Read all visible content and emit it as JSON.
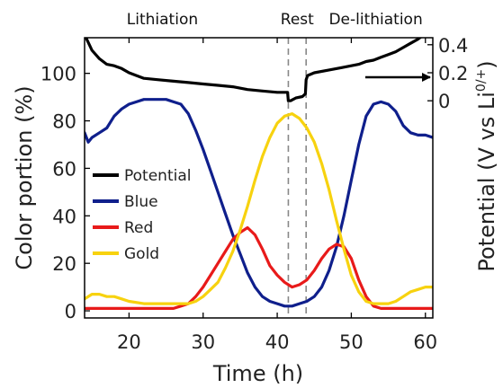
{
  "chart_data": {
    "type": "line",
    "xlabel": "Time (h)",
    "ylabel": "Color portion (%)",
    "y2label": "Potential (V vs Li",
    "y2label_sup": "0/+",
    "y2label_close": ")",
    "xlim": [
      14,
      61
    ],
    "ylim": [
      -3,
      115
    ],
    "y2lim": [
      -1.55,
      0.45
    ],
    "xticks": [
      20,
      30,
      40,
      50,
      60
    ],
    "yticks": [
      0,
      20,
      40,
      60,
      80,
      100
    ],
    "y2ticks": [
      {
        "value": 0.0,
        "label": "0"
      },
      {
        "value": 0.2,
        "label": "0.2"
      },
      {
        "value": 0.4,
        "label": "0.4"
      }
    ],
    "phases": [
      {
        "label": "Lithiation",
        "x": 24.5
      },
      {
        "label": "Rest",
        "x": 42.7
      },
      {
        "label": "De-lithiation",
        "x": 53.3
      }
    ],
    "rest_bounds": [
      41.5,
      43.9
    ],
    "series": [
      {
        "name": "Potential",
        "color": "#000000",
        "axis": "y2",
        "x": [
          14.2,
          15,
          16,
          17,
          18,
          19,
          20,
          21,
          22,
          24,
          26,
          28,
          30,
          32,
          34,
          36,
          38,
          40,
          41.4,
          41.5,
          41.8,
          42.5,
          43.4,
          43.8,
          43.9,
          44.1,
          45,
          47,
          49,
          51,
          52,
          53,
          54,
          55,
          56,
          57,
          58,
          59,
          60,
          60.5,
          61
        ],
        "values": [
          0.45,
          0.36,
          0.3,
          0.26,
          0.25,
          0.23,
          0.2,
          0.18,
          0.16,
          0.15,
          0.14,
          0.13,
          0.12,
          0.11,
          0.1,
          0.08,
          0.07,
          0.06,
          0.06,
          0.0,
          0.0,
          0.02,
          0.03,
          0.05,
          0.15,
          0.18,
          0.2,
          0.22,
          0.24,
          0.26,
          0.28,
          0.29,
          0.31,
          0.33,
          0.35,
          0.38,
          0.41,
          0.44,
          0.48,
          0.53,
          0.62
        ]
      },
      {
        "name": "Blue",
        "color": "#0f1f8c",
        "axis": "y",
        "x": [
          14,
          14.5,
          15,
          16,
          17,
          18,
          19,
          20,
          21,
          22,
          23,
          24,
          25,
          26,
          27,
          28,
          29,
          30,
          31,
          32,
          33,
          34,
          35,
          36,
          37,
          38,
          39,
          40,
          41,
          42,
          43,
          44,
          45,
          46,
          47,
          48,
          49,
          50,
          51,
          52,
          53,
          54,
          55,
          56,
          57,
          58,
          59,
          60,
          61
        ],
        "values": [
          75,
          71,
          73,
          75,
          77,
          82,
          85,
          87,
          88,
          89,
          89,
          89,
          89,
          88,
          87,
          83,
          76,
          68,
          59,
          50,
          41,
          32,
          24,
          16,
          10,
          6,
          4,
          3,
          2,
          2,
          3,
          4,
          6,
          10,
          17,
          27,
          40,
          55,
          70,
          82,
          87,
          88,
          87,
          84,
          78,
          75,
          74,
          74,
          73
        ]
      },
      {
        "name": "Red",
        "color": "#e81a1a",
        "axis": "y",
        "x": [
          14,
          16,
          18,
          20,
          22,
          24,
          26,
          27,
          28,
          29,
          30,
          31,
          32,
          33,
          34,
          35,
          36,
          37,
          38,
          39,
          40,
          41,
          42,
          43,
          44,
          45,
          46,
          47,
          48,
          49,
          50,
          51,
          52,
          53,
          54,
          56,
          58,
          60,
          61
        ],
        "values": [
          1,
          1,
          1,
          1,
          1,
          1,
          1,
          2,
          3,
          6,
          10,
          15,
          20,
          25,
          30,
          33,
          35,
          32,
          26,
          19,
          15,
          12,
          10,
          11,
          13,
          17,
          22,
          26,
          28,
          27,
          22,
          13,
          6,
          2,
          1,
          1,
          1,
          1,
          1
        ]
      },
      {
        "name": "Gold",
        "color": "#f7d20f",
        "axis": "y",
        "x": [
          14,
          15,
          16,
          17,
          18,
          19,
          20,
          22,
          24,
          26,
          28,
          29,
          30,
          31,
          32,
          33,
          34,
          35,
          36,
          37,
          38,
          39,
          40,
          41,
          42,
          43,
          44,
          45,
          46,
          47,
          48,
          49,
          50,
          51,
          52,
          53,
          54,
          55,
          56,
          57,
          58,
          59,
          60,
          61
        ],
        "values": [
          5,
          7,
          7,
          6,
          6,
          5,
          4,
          3,
          3,
          3,
          3,
          4,
          6,
          9,
          12,
          18,
          25,
          34,
          44,
          55,
          65,
          73,
          79,
          82,
          83,
          81,
          77,
          71,
          62,
          51,
          38,
          26,
          15,
          8,
          4,
          3,
          3,
          3,
          4,
          6,
          8,
          9,
          10,
          10
        ]
      }
    ],
    "legend": {
      "position": "left-middle",
      "entries": [
        "Potential",
        "Blue",
        "Red",
        "Gold"
      ]
    },
    "arrow": {
      "direction": "right",
      "points_to": "y2"
    },
    "grid": false
  }
}
